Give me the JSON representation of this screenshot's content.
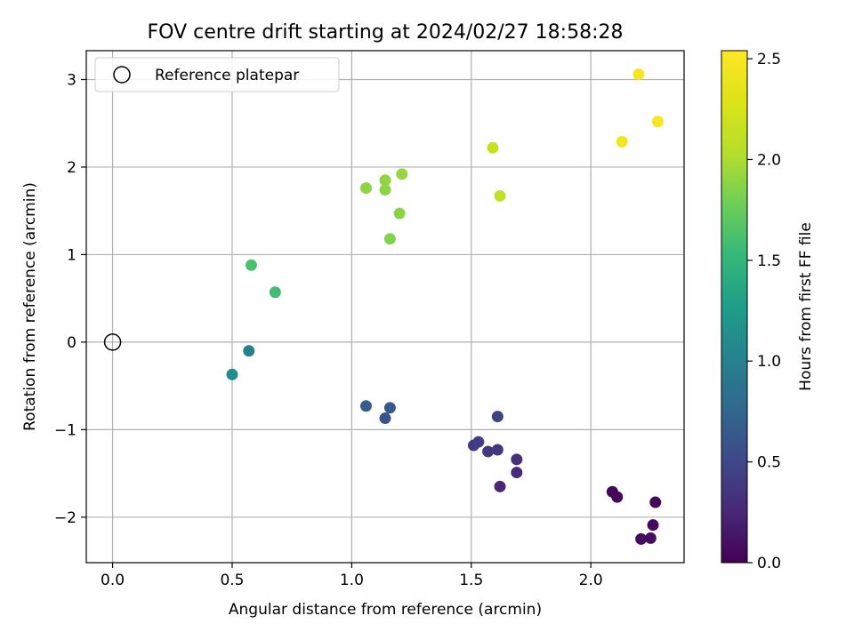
{
  "chart_data": {
    "type": "scatter",
    "title": "FOV centre drift starting at 2024/02/27 18:58:28",
    "xlabel": "Angular distance from reference (arcmin)",
    "ylabel": "Rotation from reference (arcmin)",
    "xlim": [
      -0.11,
      2.39
    ],
    "ylim": [
      -2.52,
      3.33
    ],
    "xticks": [
      0.0,
      0.5,
      1.0,
      1.5,
      2.0
    ],
    "xtick_labels": [
      "0.0",
      "0.5",
      "1.0",
      "1.5",
      "2.0"
    ],
    "yticks": [
      -2,
      -1,
      0,
      1,
      2,
      3
    ],
    "ytick_labels": [
      "−2",
      "−1",
      "0",
      "1",
      "2",
      "3"
    ],
    "grid": true,
    "legend": {
      "position": "top-left",
      "entries": [
        "Reference platepar"
      ]
    },
    "reference_point": {
      "x": 0.0,
      "y": 0.0
    },
    "colorbar": {
      "label": "Hours from first FF file",
      "range": [
        0.0,
        2.54
      ],
      "ticks": [
        0.0,
        0.5,
        1.0,
        1.5,
        2.0,
        2.5
      ],
      "tick_labels": [
        "0.0",
        "0.5",
        "1.0",
        "1.5",
        "2.0",
        "2.5"
      ],
      "colormap": "viridis"
    },
    "points": [
      {
        "x": 2.09,
        "y": -1.71,
        "c": 0.02
      },
      {
        "x": 2.11,
        "y": -1.77,
        "c": 0.03
      },
      {
        "x": 2.27,
        "y": -1.83,
        "c": 0.05
      },
      {
        "x": 2.26,
        "y": -2.09,
        "c": 0.06
      },
      {
        "x": 2.21,
        "y": -2.25,
        "c": 0.07
      },
      {
        "x": 2.25,
        "y": -2.24,
        "c": 0.08
      },
      {
        "x": 1.62,
        "y": -1.65,
        "c": 0.25
      },
      {
        "x": 1.69,
        "y": -1.49,
        "c": 0.28
      },
      {
        "x": 1.69,
        "y": -1.34,
        "c": 0.32
      },
      {
        "x": 1.61,
        "y": -1.23,
        "c": 0.36
      },
      {
        "x": 1.57,
        "y": -1.25,
        "c": 0.38
      },
      {
        "x": 1.51,
        "y": -1.18,
        "c": 0.4
      },
      {
        "x": 1.53,
        "y": -1.14,
        "c": 0.42
      },
      {
        "x": 1.61,
        "y": -0.85,
        "c": 0.45
      },
      {
        "x": 1.14,
        "y": -0.87,
        "c": 0.6
      },
      {
        "x": 1.16,
        "y": -0.75,
        "c": 0.65
      },
      {
        "x": 1.06,
        "y": -0.73,
        "c": 0.68
      },
      {
        "x": 0.57,
        "y": -0.1,
        "c": 1.0
      },
      {
        "x": 0.5,
        "y": -0.37,
        "c": 1.12
      },
      {
        "x": 0.68,
        "y": 0.57,
        "c": 1.58
      },
      {
        "x": 0.58,
        "y": 0.88,
        "c": 1.62
      },
      {
        "x": 1.16,
        "y": 1.18,
        "c": 1.85
      },
      {
        "x": 1.2,
        "y": 1.47,
        "c": 1.87
      },
      {
        "x": 1.14,
        "y": 1.74,
        "c": 1.88
      },
      {
        "x": 1.06,
        "y": 1.76,
        "c": 1.89
      },
      {
        "x": 1.14,
        "y": 1.85,
        "c": 1.9
      },
      {
        "x": 1.21,
        "y": 1.92,
        "c": 1.92
      },
      {
        "x": 1.62,
        "y": 1.67,
        "c": 2.1
      },
      {
        "x": 1.59,
        "y": 2.22,
        "c": 2.15
      },
      {
        "x": 2.13,
        "y": 2.29,
        "c": 2.45
      },
      {
        "x": 2.2,
        "y": 3.06,
        "c": 2.48
      },
      {
        "x": 2.28,
        "y": 2.52,
        "c": 2.5
      }
    ]
  }
}
